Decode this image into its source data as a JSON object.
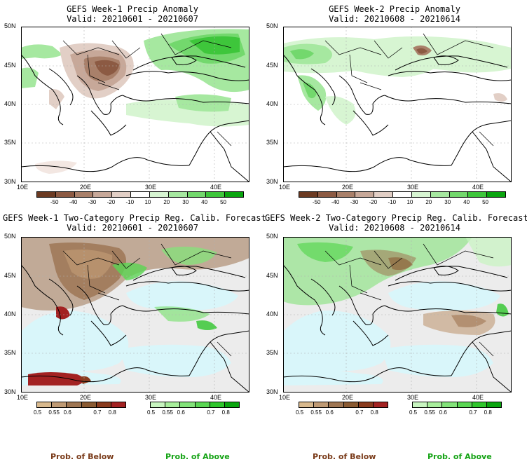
{
  "panels": [
    {
      "title": "GEFS Week-1 Precip Anomaly",
      "valid": "Valid: 20210601 - 20210607"
    },
    {
      "title": "GEFS Week-2 Precip Anomaly",
      "valid": "Valid: 20210608 - 20210614"
    },
    {
      "title": "GEFS Week-1 Two-Category Precip Reg. Calib. Forecast",
      "valid": "Valid: 20210601 - 20210607"
    },
    {
      "title": "GEFS Week-2 Two-Category Precip Reg. Calib. Forecast",
      "valid": "Valid: 20210608 - 20210614"
    }
  ],
  "lat_labels": [
    "50N",
    "45N",
    "40N",
    "35N",
    "30N"
  ],
  "lon_labels": [
    "10E",
    "20E",
    "30E",
    "40E"
  ],
  "anomaly_colorbar": {
    "ticks": [
      "-50",
      "-40",
      "-30",
      "-20",
      "-10",
      "10",
      "20",
      "30",
      "40",
      "50"
    ],
    "colors": [
      "#6b3a22",
      "#8c5a43",
      "#a9806a",
      "#c7a899",
      "#e2cfc6",
      "#ffffff",
      "#d7f5d2",
      "#a6e8a0",
      "#73d86d",
      "#3ec63b",
      "#0aa50f"
    ]
  },
  "prob_colorbar_below": {
    "ticks": [
      "0.5",
      "0.55",
      "0.6",
      "0.7",
      "0.8"
    ],
    "colors": [
      "#d8b98e",
      "#bf9a74",
      "#9e7552",
      "#8a5a32",
      "#8a3b1e",
      "#a32222"
    ]
  },
  "prob_colorbar_above": {
    "ticks": [
      "0.5",
      "0.55",
      "0.6",
      "0.7",
      "0.8"
    ],
    "colors": [
      "#c8f5c0",
      "#a8ee9c",
      "#83e37a",
      "#5ad653",
      "#2fc62c",
      "#0aa50f"
    ]
  },
  "prob_labels": {
    "below": "Prob. of Below",
    "above": "Prob. of Above"
  },
  "colors": {
    "sea_prob": "#d9f6fa",
    "land_no_signal": "#ececec",
    "below_text": "#7a3b1a",
    "above_text": "#15a315"
  }
}
